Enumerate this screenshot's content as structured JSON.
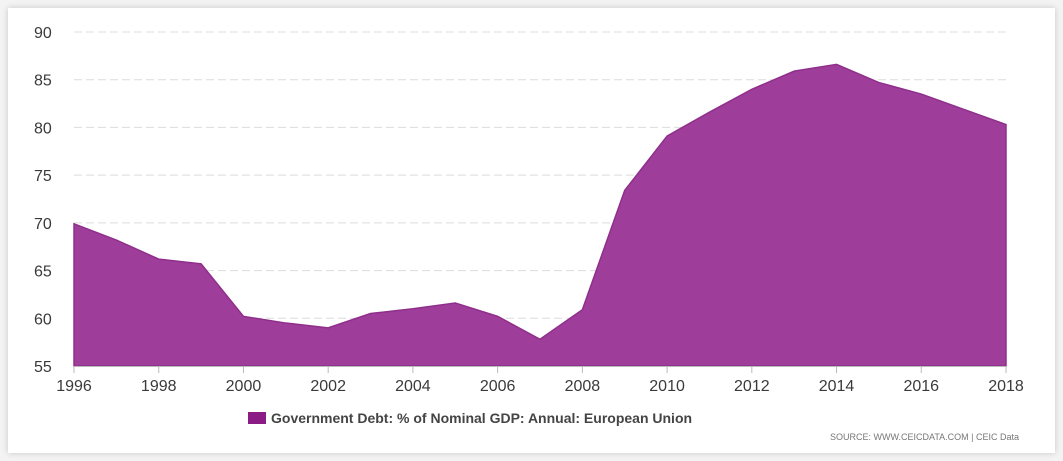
{
  "chart_data": {
    "type": "area",
    "x": [
      1996,
      1997,
      1998,
      1999,
      2000,
      2001,
      2002,
      2003,
      2004,
      2005,
      2006,
      2007,
      2008,
      2009,
      2010,
      2011,
      2012,
      2013,
      2014,
      2015,
      2016,
      2017,
      2018
    ],
    "series": [
      {
        "name": "Government Debt: % of Nominal GDP: Annual: European Union",
        "values": [
          69.9,
          68.2,
          66.2,
          65.7,
          60.2,
          59.5,
          59.0,
          60.5,
          61.0,
          61.6,
          60.2,
          57.8,
          60.9,
          73.4,
          79.1,
          81.6,
          84.0,
          85.9,
          86.6,
          84.7,
          83.5,
          81.9,
          80.3
        ]
      }
    ],
    "ylim": [
      55,
      90
    ],
    "yticks": [
      55,
      60,
      65,
      70,
      75,
      80,
      85,
      90
    ],
    "xlim": [
      1996,
      2018
    ],
    "xticks": [
      1996,
      1998,
      2000,
      2002,
      2004,
      2006,
      2008,
      2010,
      2012,
      2014,
      2016,
      2018
    ],
    "grid": true,
    "legend_position": "bottom-center",
    "color": "#9e3d9a",
    "legend_color": "#8b1c86",
    "source": "SOURCE: WWW.CEICDATA.COM | CEIC Data"
  }
}
